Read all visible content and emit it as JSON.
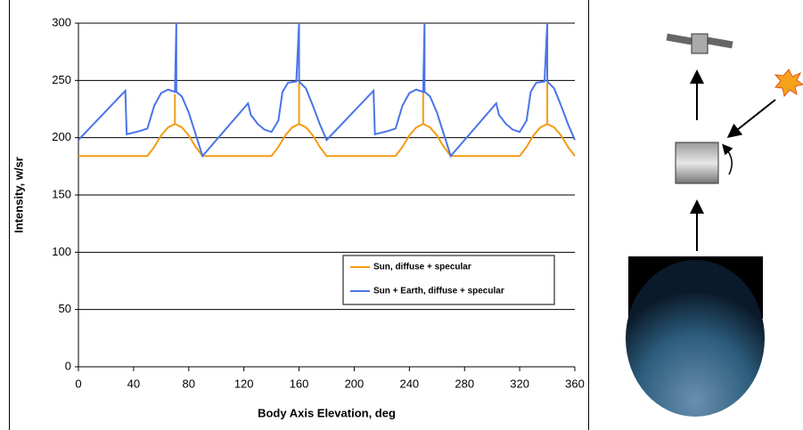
{
  "chart_data": {
    "type": "line",
    "xlabel": "Body Axis Elevation, deg",
    "ylabel": "Intensity, w/sr",
    "xlim": [
      0,
      360
    ],
    "xticks": [
      0,
      40,
      80,
      120,
      160,
      200,
      240,
      280,
      320,
      360
    ],
    "ylim": [
      0,
      300
    ],
    "yticks": [
      0,
      50,
      100,
      150,
      200,
      250,
      300
    ],
    "grid": true,
    "legend": "lower right",
    "series": [
      {
        "name": "Sun, diffuse + specular",
        "color": "#f39c12",
        "x": [
          0,
          50,
          55,
          60,
          65,
          70,
          70,
          70,
          75,
          80,
          85,
          90,
          140,
          145,
          150,
          155,
          160,
          160,
          160,
          165,
          170,
          175,
          180,
          230,
          235,
          240,
          245,
          250,
          250,
          250,
          255,
          260,
          265,
          270,
          320,
          325,
          330,
          335,
          340,
          340,
          340,
          345,
          350,
          355,
          360
        ],
        "values": [
          184,
          184,
          192,
          202,
          209,
          212,
          238,
          212,
          209,
          202,
          192,
          184,
          184,
          192,
          202,
          209,
          212,
          248,
          212,
          209,
          202,
          192,
          184,
          184,
          192,
          202,
          209,
          212,
          240,
          212,
          209,
          202,
          192,
          184,
          184,
          192,
          202,
          209,
          212,
          248,
          212,
          209,
          202,
          192,
          184
        ]
      },
      {
        "name": "Sun + Earth, diffuse + specular",
        "color": "#4a74e8",
        "x": [
          0,
          34,
          35,
          45,
          50,
          55,
          60,
          65,
          70,
          71,
          71,
          75,
          80,
          85,
          90,
          123,
          125,
          130,
          135,
          140,
          145,
          148,
          152,
          158,
          160,
          160,
          165,
          170,
          175,
          180,
          214,
          215,
          225,
          230,
          235,
          240,
          245,
          250,
          251,
          251,
          255,
          260,
          265,
          270,
          303,
          305,
          310,
          315,
          320,
          325,
          328,
          332,
          338,
          340,
          340,
          345,
          350,
          355,
          360
        ],
        "values": [
          198,
          241,
          203,
          206,
          208,
          228,
          239,
          242,
          240,
          300,
          240,
          236,
          222,
          203,
          184,
          230,
          220,
          212,
          207,
          205,
          215,
          240,
          248,
          249,
          300,
          249,
          243,
          228,
          212,
          198,
          241,
          203,
          206,
          208,
          228,
          239,
          242,
          240,
          300,
          240,
          236,
          222,
          203,
          184,
          230,
          220,
          212,
          207,
          205,
          215,
          240,
          248,
          249,
          300,
          249,
          243,
          228,
          212,
          198
        ]
      }
    ]
  }
}
